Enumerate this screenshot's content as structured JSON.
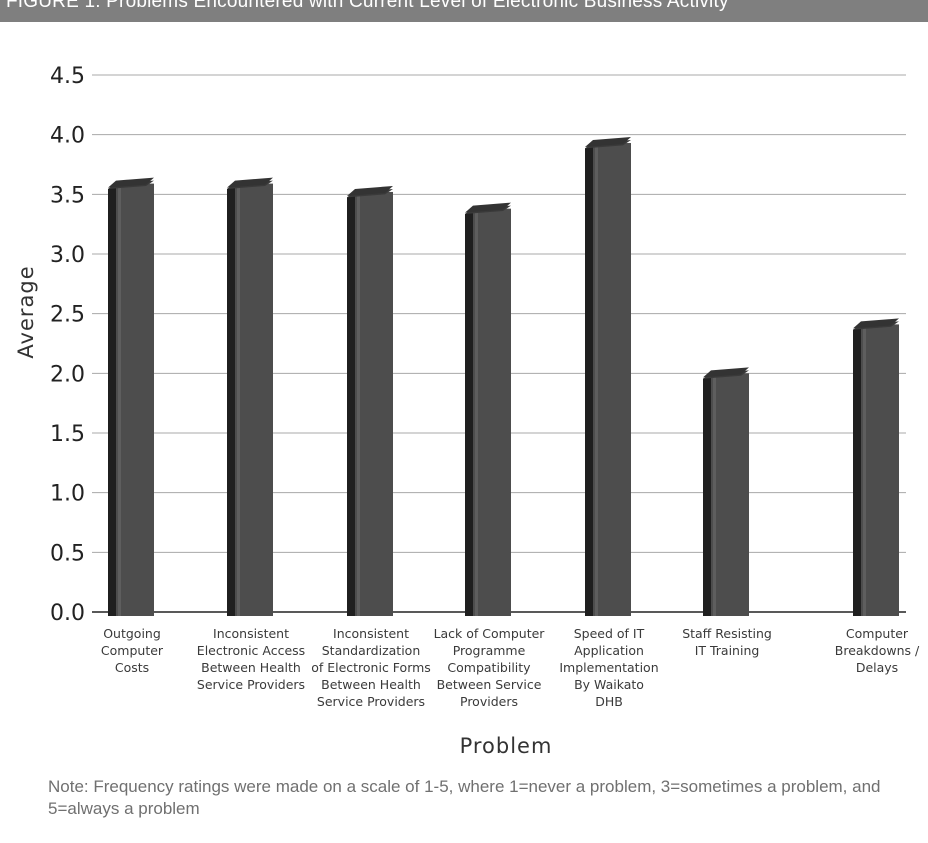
{
  "header": {
    "title": "FIGURE 1: Problems Encountered with Current Level of Electronic Business Activity"
  },
  "chart_data": {
    "type": "bar",
    "xlabel": "Problem",
    "ylabel": "Average",
    "ylim": [
      0,
      4.5
    ],
    "yticks": [
      "0.0",
      "0.5",
      "1.0",
      "1.5",
      "2.0",
      "2.5",
      "3.0",
      "3.5",
      "4.0",
      "4.5"
    ],
    "grid": true,
    "categories": [
      [
        "Outgoing",
        "Computer",
        "Costs"
      ],
      [
        "Inconsistent",
        "Electronic Access",
        "Between Health",
        "Service Providers"
      ],
      [
        "Inconsistent",
        "Standardization",
        "of Electronic Forms",
        "Between Health",
        "Service Providers"
      ],
      [
        "Lack of Computer",
        "Programme",
        "Compatibility",
        "Between Service",
        "Providers"
      ],
      [
        "Speed of IT",
        "Application",
        "Implementation",
        "By Waikato",
        "DHB"
      ],
      [
        "Staff Resisting",
        "IT Training"
      ],
      [
        "Computer",
        "Breakdowns /",
        "Delays"
      ]
    ],
    "values": [
      3.59,
      3.59,
      3.52,
      3.38,
      3.93,
      2.0,
      2.41
    ],
    "bar_color": "#4d4d4d"
  },
  "note": {
    "text": "Note: Frequency ratings were made on a scale of 1-5, where 1=never a problem, 3=sometimes a problem, and 5=always a problem"
  }
}
